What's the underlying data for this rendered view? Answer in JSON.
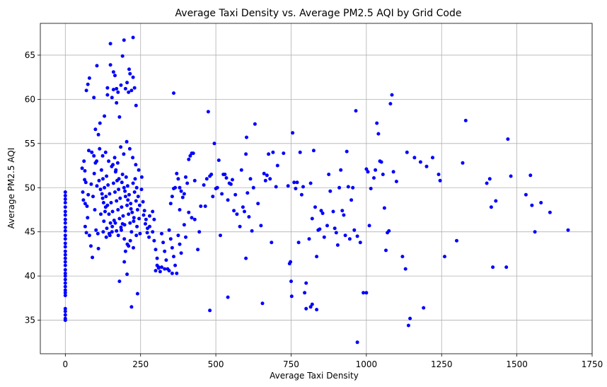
{
  "chart_data": {
    "type": "scatter",
    "title": "Average Taxi Density vs. Average PM2.5 AQI by Grid Code",
    "xlabel": "Average Taxi Density",
    "ylabel": "Average PM2.5 AQI",
    "xlim": [
      -83,
      1750
    ],
    "ylim": [
      31.2,
      68.6
    ],
    "xticks": [
      0,
      250,
      500,
      750,
      1000,
      1250,
      1500,
      1750
    ],
    "yticks": [
      35,
      40,
      45,
      50,
      55,
      60,
      65
    ],
    "grid": true,
    "marker_color": "#0000ff",
    "points": [
      [
        0,
        35.0
      ],
      [
        0,
        35.2
      ],
      [
        0,
        35.6
      ],
      [
        0,
        36.0
      ],
      [
        0,
        36.3
      ],
      [
        0,
        37.8
      ],
      [
        0,
        38.1
      ],
      [
        0,
        38.4
      ],
      [
        0,
        38.8
      ],
      [
        0,
        39.2
      ],
      [
        0,
        39.6
      ],
      [
        0,
        40.0
      ],
      [
        0,
        40.3
      ],
      [
        0,
        40.7
      ],
      [
        0,
        41.2
      ],
      [
        0,
        41.6
      ],
      [
        0,
        42.0
      ],
      [
        0,
        42.4
      ],
      [
        0,
        42.8
      ],
      [
        0,
        43.3
      ],
      [
        0,
        43.7
      ],
      [
        0,
        44.2
      ],
      [
        0,
        44.6
      ],
      [
        0,
        45.1
      ],
      [
        0,
        45.5
      ],
      [
        0,
        46.0
      ],
      [
        0,
        46.4
      ],
      [
        0,
        46.9
      ],
      [
        0,
        47.3
      ],
      [
        0,
        47.8
      ],
      [
        0,
        48.3
      ],
      [
        0,
        48.7
      ],
      [
        0,
        49.1
      ],
      [
        0,
        49.5
      ],
      [
        62,
        53.0
      ],
      [
        65,
        51.9
      ],
      [
        68,
        50.6
      ],
      [
        58,
        49.5
      ],
      [
        60,
        48.6
      ],
      [
        72,
        47.9
      ],
      [
        74,
        46.6
      ],
      [
        66,
        45.6
      ],
      [
        70,
        44.9
      ],
      [
        80,
        44.6
      ],
      [
        85,
        43.4
      ],
      [
        90,
        42.1
      ],
      [
        78,
        54.2
      ],
      [
        88,
        54.0
      ],
      [
        95,
        53.6
      ],
      [
        100,
        52.8
      ],
      [
        105,
        50.2
      ],
      [
        92,
        49.0
      ],
      [
        98,
        47.5
      ],
      [
        102,
        45.2
      ],
      [
        108,
        44.8
      ],
      [
        110,
        43.1
      ],
      [
        56,
        52.2
      ],
      [
        64,
        50.9
      ],
      [
        70,
        61.0
      ],
      [
        75,
        61.7
      ],
      [
        80,
        62.4
      ],
      [
        95,
        60.2
      ],
      [
        105,
        63.8
      ],
      [
        100,
        56.6
      ],
      [
        110,
        56.0
      ],
      [
        115,
        57.3
      ],
      [
        130,
        58.1
      ],
      [
        140,
        60.5
      ],
      [
        140,
        61.3
      ],
      [
        150,
        66.3
      ],
      [
        150,
        63.9
      ],
      [
        160,
        63.1
      ],
      [
        165,
        62.7
      ],
      [
        160,
        61.1
      ],
      [
        170,
        59.6
      ],
      [
        170,
        61.2
      ],
      [
        175,
        60.8
      ],
      [
        180,
        58.0
      ],
      [
        185,
        61.6
      ],
      [
        190,
        64.9
      ],
      [
        195,
        66.7
      ],
      [
        200,
        61.2
      ],
      [
        205,
        61.9
      ],
      [
        210,
        60.8
      ],
      [
        212,
        63.4
      ],
      [
        215,
        62.9
      ],
      [
        220,
        61.0
      ],
      [
        225,
        62.5
      ],
      [
        225,
        67.0
      ],
      [
        230,
        61.3
      ],
      [
        235,
        59.3
      ],
      [
        155,
        60.2
      ],
      [
        120,
        52.0
      ],
      [
        125,
        51.0
      ],
      [
        130,
        50.0
      ],
      [
        135,
        49.0
      ],
      [
        140,
        48.0
      ],
      [
        145,
        47.0
      ],
      [
        150,
        46.0
      ],
      [
        155,
        45.0
      ],
      [
        160,
        50.5
      ],
      [
        165,
        49.5
      ],
      [
        170,
        48.5
      ],
      [
        175,
        47.5
      ],
      [
        180,
        46.5
      ],
      [
        185,
        45.5
      ],
      [
        190,
        51.5
      ],
      [
        195,
        50.0
      ],
      [
        200,
        49.0
      ],
      [
        205,
        48.0
      ],
      [
        210,
        47.0
      ],
      [
        215,
        46.0
      ],
      [
        220,
        45.0
      ],
      [
        225,
        50.5
      ],
      [
        230,
        49.5
      ],
      [
        235,
        48.5
      ],
      [
        240,
        47.5
      ],
      [
        245,
        46.5
      ],
      [
        122,
        49.3
      ],
      [
        127,
        48.3
      ],
      [
        132,
        47.3
      ],
      [
        137,
        51.3
      ],
      [
        142,
        50.3
      ],
      [
        147,
        49.3
      ],
      [
        152,
        48.3
      ],
      [
        157,
        47.3
      ],
      [
        162,
        46.3
      ],
      [
        167,
        51.8
      ],
      [
        172,
        50.8
      ],
      [
        177,
        49.8
      ],
      [
        182,
        48.8
      ],
      [
        187,
        47.8
      ],
      [
        192,
        46.8
      ],
      [
        197,
        45.8
      ],
      [
        202,
        51.2
      ],
      [
        207,
        50.2
      ],
      [
        212,
        49.2
      ],
      [
        217,
        48.2
      ],
      [
        222,
        47.2
      ],
      [
        227,
        46.2
      ],
      [
        232,
        51.0
      ],
      [
        237,
        50.0
      ],
      [
        242,
        49.0
      ],
      [
        247,
        48.0
      ],
      [
        118,
        47.0
      ],
      [
        128,
        46.2
      ],
      [
        138,
        45.4
      ],
      [
        148,
        44.6
      ],
      [
        158,
        52.6
      ],
      [
        168,
        52.0
      ],
      [
        178,
        51.0
      ],
      [
        188,
        50.6
      ],
      [
        198,
        49.6
      ],
      [
        208,
        48.6
      ],
      [
        218,
        47.6
      ],
      [
        228,
        46.6
      ],
      [
        238,
        45.6
      ],
      [
        248,
        44.8
      ],
      [
        258,
        48.4
      ],
      [
        263,
        47.4
      ],
      [
        268,
        46.4
      ],
      [
        273,
        45.4
      ],
      [
        278,
        44.4
      ],
      [
        253,
        49.8
      ],
      [
        260,
        46.9
      ],
      [
        266,
        45.9
      ],
      [
        272,
        44.9
      ],
      [
        280,
        46.8
      ],
      [
        112,
        50.8
      ],
      [
        117,
        49.8
      ],
      [
        124,
        48.8
      ],
      [
        134,
        47.8
      ],
      [
        144,
        53.0
      ],
      [
        154,
        52.4
      ],
      [
        164,
        53.4
      ],
      [
        174,
        52.8
      ],
      [
        184,
        54.6
      ],
      [
        194,
        53.8
      ],
      [
        204,
        55.2
      ],
      [
        214,
        54.4
      ],
      [
        224,
        53.4
      ],
      [
        234,
        52.6
      ],
      [
        244,
        52.0
      ],
      [
        254,
        51.2
      ],
      [
        124,
        53.6
      ],
      [
        134,
        54.0
      ],
      [
        114,
        54.4
      ],
      [
        104,
        53.0
      ],
      [
        96,
        51.6
      ],
      [
        86,
        50.4
      ],
      [
        76,
        49.2
      ],
      [
        66,
        48.2
      ],
      [
        126,
        45.0
      ],
      [
        136,
        44.4
      ],
      [
        146,
        44.8
      ],
      [
        156,
        45.6
      ],
      [
        166,
        46.0
      ],
      [
        176,
        44.6
      ],
      [
        186,
        45.2
      ],
      [
        196,
        44.2
      ],
      [
        206,
        43.6
      ],
      [
        216,
        44.0
      ],
      [
        226,
        43.2
      ],
      [
        236,
        44.6
      ],
      [
        196,
        41.6
      ],
      [
        200,
        42.8
      ],
      [
        205,
        40.2
      ],
      [
        210,
        43.4
      ],
      [
        180,
        39.4
      ],
      [
        220,
        36.5
      ],
      [
        240,
        38.0
      ],
      [
        190,
        45.9
      ],
      [
        170,
        45.1
      ],
      [
        290,
        45.0
      ],
      [
        295,
        44.0
      ],
      [
        300,
        43.0
      ],
      [
        305,
        42.0
      ],
      [
        310,
        41.0
      ],
      [
        315,
        40.5
      ],
      [
        320,
        44.8
      ],
      [
        325,
        43.8
      ],
      [
        330,
        42.8
      ],
      [
        335,
        41.8
      ],
      [
        340,
        40.8
      ],
      [
        345,
        45.2
      ],
      [
        350,
        44.2
      ],
      [
        355,
        43.2
      ],
      [
        360,
        42.2
      ],
      [
        365,
        41.2
      ],
      [
        370,
        40.3
      ],
      [
        375,
        44.6
      ],
      [
        380,
        43.6
      ],
      [
        385,
        42.6
      ],
      [
        300,
        40.6
      ],
      [
        305,
        41.2
      ],
      [
        310,
        40.9
      ],
      [
        320,
        41.0
      ],
      [
        330,
        40.8
      ],
      [
        345,
        40.6
      ],
      [
        355,
        40.3
      ],
      [
        290,
        47.3
      ],
      [
        295,
        46.4
      ],
      [
        280,
        45.6
      ],
      [
        350,
        48.2
      ],
      [
        355,
        49.0
      ],
      [
        360,
        49.9
      ],
      [
        365,
        50.0
      ],
      [
        370,
        51.6
      ],
      [
        375,
        51.0
      ],
      [
        380,
        50.0
      ],
      [
        385,
        49.6
      ],
      [
        390,
        48.9
      ],
      [
        395,
        49.3
      ],
      [
        400,
        51.2
      ],
      [
        405,
        50.5
      ],
      [
        410,
        53.2
      ],
      [
        415,
        53.6
      ],
      [
        420,
        53.9
      ],
      [
        425,
        53.9
      ],
      [
        430,
        50.8
      ],
      [
        380,
        47.5
      ],
      [
        395,
        45.8
      ],
      [
        400,
        44.4
      ],
      [
        410,
        47.2
      ],
      [
        420,
        46.6
      ],
      [
        430,
        46.4
      ],
      [
        440,
        43.0
      ],
      [
        445,
        45.0
      ],
      [
        360,
        60.7
      ],
      [
        450,
        47.9
      ],
      [
        460,
        50.3
      ],
      [
        465,
        47.9
      ],
      [
        470,
        51.0
      ],
      [
        475,
        58.6
      ],
      [
        480,
        51.3
      ],
      [
        485,
        51.5
      ],
      [
        490,
        49.0
      ],
      [
        495,
        55.0
      ],
      [
        500,
        49.9
      ],
      [
        505,
        50.0
      ],
      [
        510,
        53.1
      ],
      [
        515,
        44.6
      ],
      [
        520,
        49.3
      ],
      [
        525,
        51.5
      ],
      [
        530,
        51.5
      ],
      [
        535,
        51.1
      ],
      [
        540,
        48.6
      ],
      [
        545,
        50.5
      ],
      [
        550,
        50.4
      ],
      [
        555,
        50.9
      ],
      [
        560,
        47.4
      ],
      [
        565,
        49.2
      ],
      [
        570,
        47.0
      ],
      [
        580,
        45.6
      ],
      [
        585,
        52.0
      ],
      [
        590,
        47.8
      ],
      [
        595,
        47.3
      ],
      [
        600,
        53.8
      ],
      [
        602,
        55.7
      ],
      [
        605,
        49.4
      ],
      [
        610,
        46.7
      ],
      [
        615,
        51.0
      ],
      [
        620,
        45.1
      ],
      [
        625,
        50.0
      ],
      [
        630,
        57.2
      ],
      [
        640,
        48.2
      ],
      [
        650,
        45.7
      ],
      [
        660,
        51.6
      ],
      [
        665,
        50.8
      ],
      [
        670,
        51.4
      ],
      [
        675,
        53.8
      ],
      [
        680,
        51.0
      ],
      [
        690,
        54.0
      ],
      [
        700,
        50.1
      ],
      [
        705,
        52.5
      ],
      [
        480,
        36.1
      ],
      [
        540,
        37.6
      ],
      [
        600,
        42.0
      ],
      [
        655,
        36.9
      ],
      [
        685,
        43.8
      ],
      [
        725,
        53.9
      ],
      [
        740,
        50.2
      ],
      [
        745,
        41.4
      ],
      [
        748,
        41.6
      ],
      [
        750,
        39.4
      ],
      [
        752,
        37.7
      ],
      [
        755,
        56.2
      ],
      [
        760,
        50.6
      ],
      [
        765,
        49.9
      ],
      [
        770,
        50.6
      ],
      [
        775,
        43.8
      ],
      [
        780,
        54.0
      ],
      [
        785,
        49.2
      ],
      [
        790,
        50.1
      ],
      [
        795,
        38.1
      ],
      [
        800,
        39.2
      ],
      [
        810,
        44.2
      ],
      [
        815,
        50.5
      ],
      [
        820,
        46.5
      ],
      [
        825,
        54.2
      ],
      [
        830,
        47.8
      ],
      [
        835,
        42.2
      ],
      [
        840,
        45.2
      ],
      [
        845,
        45.3
      ],
      [
        850,
        47.4
      ],
      [
        855,
        47.1
      ],
      [
        860,
        44.4
      ],
      [
        870,
        45.7
      ],
      [
        875,
        51.5
      ],
      [
        880,
        49.6
      ],
      [
        890,
        47.3
      ],
      [
        895,
        45.4
      ],
      [
        900,
        44.9
      ],
      [
        905,
        43.5
      ],
      [
        910,
        50.0
      ],
      [
        915,
        52.0
      ],
      [
        920,
        47.4
      ],
      [
        925,
        46.9
      ],
      [
        930,
        44.6
      ],
      [
        935,
        54.1
      ],
      [
        940,
        50.1
      ],
      [
        945,
        44.2
      ],
      [
        950,
        48.6
      ],
      [
        955,
        50.0
      ],
      [
        960,
        45.2
      ],
      [
        965,
        58.7
      ],
      [
        970,
        44.5
      ],
      [
        980,
        43.8
      ],
      [
        800,
        36.3
      ],
      [
        815,
        36.5
      ],
      [
        820,
        36.8
      ],
      [
        835,
        36.2
      ],
      [
        970,
        32.5
      ],
      [
        990,
        38.1
      ],
      [
        1000,
        52.1
      ],
      [
        1005,
        51.8
      ],
      [
        1010,
        45.7
      ],
      [
        1015,
        49.9
      ],
      [
        1025,
        51.1
      ],
      [
        1030,
        52.0
      ],
      [
        1035,
        57.3
      ],
      [
        1040,
        56.1
      ],
      [
        1045,
        53.0
      ],
      [
        1050,
        52.9
      ],
      [
        1055,
        51.5
      ],
      [
        1060,
        47.7
      ],
      [
        1065,
        42.9
      ],
      [
        1070,
        44.9
      ],
      [
        1075,
        45.1
      ],
      [
        1080,
        59.5
      ],
      [
        1085,
        60.5
      ],
      [
        1090,
        51.8
      ],
      [
        1100,
        50.7
      ],
      [
        1120,
        42.2
      ],
      [
        1130,
        40.8
      ],
      [
        1135,
        54.0
      ],
      [
        1140,
        34.4
      ],
      [
        1145,
        35.2
      ],
      [
        1160,
        53.4
      ],
      [
        1180,
        52.9
      ],
      [
        1190,
        36.4
      ],
      [
        1200,
        52.4
      ],
      [
        1220,
        53.4
      ],
      [
        1240,
        51.5
      ],
      [
        1245,
        50.8
      ],
      [
        1260,
        42.2
      ],
      [
        1300,
        44.0
      ],
      [
        1320,
        52.8
      ],
      [
        1330,
        57.6
      ],
      [
        1400,
        50.5
      ],
      [
        1410,
        51.0
      ],
      [
        1415,
        47.8
      ],
      [
        1420,
        41.0
      ],
      [
        1430,
        48.5
      ],
      [
        1465,
        41.0
      ],
      [
        1470,
        55.5
      ],
      [
        1480,
        51.3
      ],
      [
        1530,
        49.2
      ],
      [
        1545,
        51.4
      ],
      [
        1550,
        48.0
      ],
      [
        1560,
        45.0
      ],
      [
        1580,
        48.3
      ],
      [
        1610,
        47.2
      ],
      [
        1670,
        45.2
      ],
      [
        1000,
        38.1
      ]
    ]
  }
}
